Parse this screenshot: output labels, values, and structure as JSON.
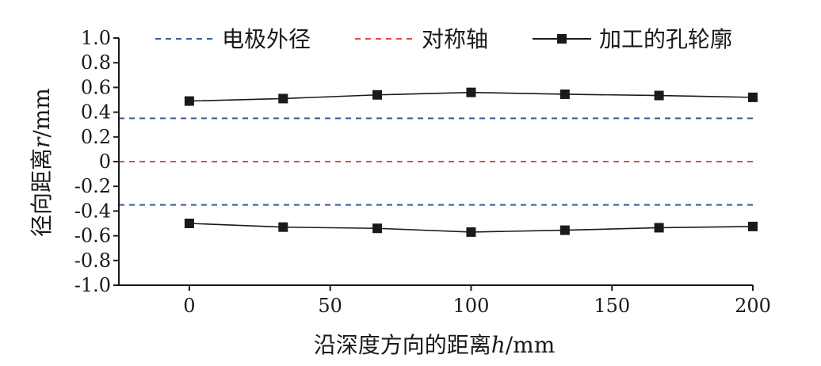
{
  "chart_data": {
    "type": "line",
    "title": "",
    "xlabel": "沿深度方向的距离",
    "xlabel_symbol": "h",
    "xlabel_unit": "/mm",
    "ylabel": "径向距离",
    "ylabel_symbol": "r",
    "ylabel_unit": "/mm",
    "xlim": [
      -25,
      200
    ],
    "ylim": [
      -1.0,
      1.0
    ],
    "x_ticks": [
      0,
      50,
      100,
      150,
      200
    ],
    "x_tick_labels": [
      "0",
      "50",
      "100",
      "150",
      "200"
    ],
    "y_ticks": [
      1.0,
      0.8,
      0.6,
      0.4,
      0.2,
      0,
      -0.2,
      -0.4,
      -0.6,
      -0.8,
      -1.0
    ],
    "y_tick_labels": [
      "1.0",
      "0.8",
      "0.6",
      "0.4",
      "0.2",
      "0",
      "-0.2",
      "-0.4",
      "-0.6",
      "-0.8",
      "-1.0"
    ],
    "grid": false,
    "legend_position": "top",
    "reference_lines": [
      {
        "name": "电极外径",
        "values": [
          0.35,
          -0.35
        ],
        "color": "#2e5f9e",
        "style": "dashed"
      },
      {
        "name": "对称轴",
        "values": [
          0
        ],
        "color": "#e04a4a",
        "style": "dashed"
      }
    ],
    "series": [
      {
        "name": "加工的孔轮廓",
        "part": "upper",
        "x": [
          0,
          33.3,
          66.7,
          100,
          133.3,
          166.7,
          200
        ],
        "values": [
          0.49,
          0.51,
          0.54,
          0.56,
          0.545,
          0.535,
          0.52
        ],
        "color": "#1a1a1a",
        "marker": "square"
      },
      {
        "name": "加工的孔轮廓",
        "part": "lower",
        "x": [
          0,
          33.3,
          66.7,
          100,
          133.3,
          166.7,
          200
        ],
        "values": [
          -0.5,
          -0.53,
          -0.54,
          -0.57,
          -0.555,
          -0.535,
          -0.525
        ],
        "color": "#1a1a1a",
        "marker": "square"
      }
    ]
  }
}
